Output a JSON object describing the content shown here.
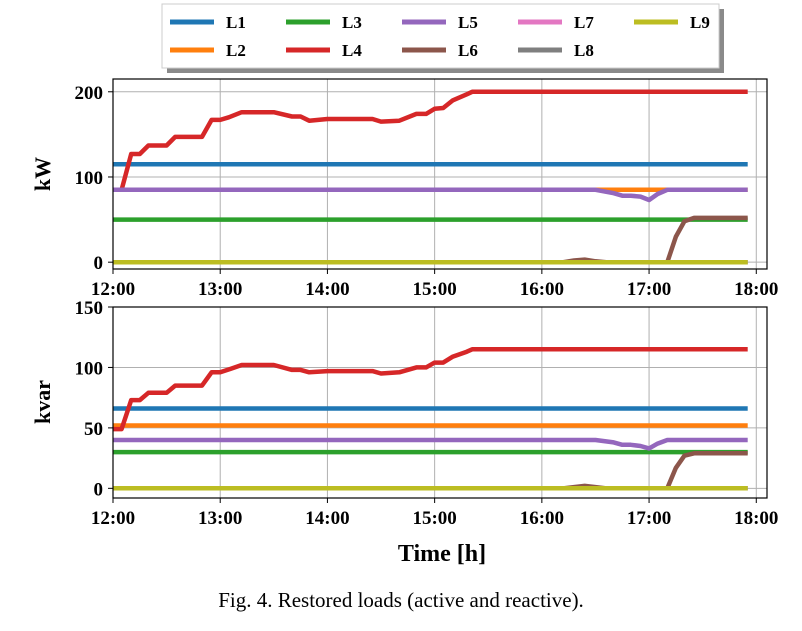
{
  "caption": "Fig. 4. Restored loads (active and reactive).",
  "legend": {
    "entries": [
      {
        "name": "L1",
        "color": "#1f77b4"
      },
      {
        "name": "L2",
        "color": "#ff7f0e"
      },
      {
        "name": "L3",
        "color": "#2ca02c"
      },
      {
        "name": "L4",
        "color": "#d62728"
      },
      {
        "name": "L5",
        "color": "#9467bd"
      },
      {
        "name": "L6",
        "color": "#8c564b"
      },
      {
        "name": "L7",
        "color": "#e377c2"
      },
      {
        "name": "L8",
        "color": "#7f7f7f"
      },
      {
        "name": "L9",
        "color": "#bcbd22"
      }
    ],
    "placement": "top-center"
  },
  "chart_data": [
    {
      "type": "line",
      "title": "",
      "ylabel": "kW",
      "xlabel": "",
      "xlim": [
        12.0,
        18.1
      ],
      "ylim": [
        -8,
        215
      ],
      "xticks": [
        12,
        13,
        14,
        15,
        16,
        17,
        18
      ],
      "xtick_labels": [
        "12:00",
        "13:00",
        "14:00",
        "15:00",
        "16:00",
        "17:00",
        "18:00"
      ],
      "yticks": [
        0,
        100,
        200
      ],
      "ytick_labels": [
        "0",
        "100",
        "200"
      ],
      "grid": true,
      "series": [
        {
          "name": "L1",
          "color": "#1f77b4",
          "points": [
            [
              12.0,
              115
            ],
            [
              17.92,
              115
            ]
          ]
        },
        {
          "name": "L2",
          "color": "#ff7f0e",
          "points": [
            [
              12.0,
              85
            ],
            [
              16.5,
              85
            ],
            [
              16.7,
              85
            ],
            [
              16.85,
              85
            ],
            [
              17.0,
              85
            ],
            [
              17.1,
              85
            ],
            [
              17.2,
              85
            ],
            [
              17.92,
              85
            ]
          ]
        },
        {
          "name": "L3",
          "color": "#2ca02c",
          "points": [
            [
              12.0,
              50
            ],
            [
              17.92,
              50
            ]
          ]
        },
        {
          "name": "L4",
          "color": "#d62728",
          "points": [
            [
              12.0,
              85
            ],
            [
              12.08,
              85
            ],
            [
              12.17,
              127
            ],
            [
              12.25,
              127
            ],
            [
              12.33,
              137
            ],
            [
              12.5,
              137
            ],
            [
              12.58,
              147
            ],
            [
              12.83,
              147
            ],
            [
              12.92,
              167
            ],
            [
              13.0,
              167
            ],
            [
              13.08,
              170
            ],
            [
              13.2,
              176
            ],
            [
              13.5,
              176
            ],
            [
              13.67,
              171
            ],
            [
              13.75,
              171
            ],
            [
              13.83,
              166
            ],
            [
              14.0,
              168
            ],
            [
              14.42,
              168
            ],
            [
              14.5,
              165
            ],
            [
              14.67,
              166
            ],
            [
              14.83,
              174
            ],
            [
              14.92,
              174
            ],
            [
              15.0,
              180
            ],
            [
              15.08,
              181
            ],
            [
              15.17,
              190
            ],
            [
              15.3,
              197
            ],
            [
              15.35,
              200
            ],
            [
              17.92,
              200
            ]
          ]
        },
        {
          "name": "L5",
          "color": "#9467bd",
          "points": [
            [
              12.0,
              85
            ],
            [
              16.5,
              85
            ],
            [
              16.67,
              81
            ],
            [
              16.75,
              78
            ],
            [
              16.83,
              78
            ],
            [
              16.92,
              77
            ],
            [
              17.0,
              73
            ],
            [
              17.08,
              80
            ],
            [
              17.17,
              85
            ],
            [
              17.92,
              85
            ]
          ]
        },
        {
          "name": "L6",
          "color": "#8c564b",
          "points": [
            [
              12.0,
              0
            ],
            [
              16.2,
              0
            ],
            [
              16.3,
              2
            ],
            [
              16.4,
              3
            ],
            [
              16.5,
              1
            ],
            [
              16.6,
              0
            ],
            [
              17.17,
              0
            ],
            [
              17.25,
              30
            ],
            [
              17.33,
              48
            ],
            [
              17.42,
              52
            ],
            [
              17.92,
              52
            ]
          ]
        },
        {
          "name": "L7",
          "color": "#e377c2",
          "points": [
            [
              12.0,
              0
            ],
            [
              17.92,
              0
            ]
          ]
        },
        {
          "name": "L8",
          "color": "#7f7f7f",
          "points": [
            [
              12.0,
              0
            ],
            [
              17.92,
              0
            ]
          ]
        },
        {
          "name": "L9",
          "color": "#bcbd22",
          "points": [
            [
              12.0,
              0
            ],
            [
              17.92,
              0
            ]
          ]
        }
      ]
    },
    {
      "type": "line",
      "title": "",
      "ylabel": "kvar",
      "xlabel": "Time [h]",
      "xlim": [
        12.0,
        18.1
      ],
      "ylim": [
        -8,
        150
      ],
      "xticks": [
        12,
        13,
        14,
        15,
        16,
        17,
        18
      ],
      "xtick_labels": [
        "12:00",
        "13:00",
        "14:00",
        "15:00",
        "16:00",
        "17:00",
        "18:00"
      ],
      "yticks": [
        0,
        50,
        100,
        150
      ],
      "ytick_labels": [
        "0",
        "50",
        "100",
        "150"
      ],
      "grid": true,
      "series": [
        {
          "name": "L1",
          "color": "#1f77b4",
          "points": [
            [
              12.0,
              66
            ],
            [
              17.92,
              66
            ]
          ]
        },
        {
          "name": "L2",
          "color": "#ff7f0e",
          "points": [
            [
              12.0,
              52
            ],
            [
              17.92,
              52
            ]
          ]
        },
        {
          "name": "L3",
          "color": "#2ca02c",
          "points": [
            [
              12.0,
              30
            ],
            [
              17.92,
              30
            ]
          ]
        },
        {
          "name": "L4",
          "color": "#d62728",
          "points": [
            [
              12.0,
              49
            ],
            [
              12.08,
              49
            ],
            [
              12.17,
              73
            ],
            [
              12.25,
              73
            ],
            [
              12.33,
              79
            ],
            [
              12.5,
              79
            ],
            [
              12.58,
              85
            ],
            [
              12.83,
              85
            ],
            [
              12.92,
              96
            ],
            [
              13.0,
              96
            ],
            [
              13.1,
              99
            ],
            [
              13.2,
              102
            ],
            [
              13.5,
              102
            ],
            [
              13.67,
              98
            ],
            [
              13.75,
              98
            ],
            [
              13.83,
              96
            ],
            [
              14.0,
              97
            ],
            [
              14.42,
              97
            ],
            [
              14.5,
              95
            ],
            [
              14.67,
              96
            ],
            [
              14.83,
              100
            ],
            [
              14.92,
              100
            ],
            [
              15.0,
              104
            ],
            [
              15.08,
              104
            ],
            [
              15.17,
              109
            ],
            [
              15.3,
              113
            ],
            [
              15.35,
              115
            ],
            [
              17.92,
              115
            ]
          ]
        },
        {
          "name": "L5",
          "color": "#9467bd",
          "points": [
            [
              12.0,
              40
            ],
            [
              16.5,
              40
            ],
            [
              16.67,
              38
            ],
            [
              16.75,
              36
            ],
            [
              16.83,
              36
            ],
            [
              16.92,
              35
            ],
            [
              17.0,
              33
            ],
            [
              17.08,
              37
            ],
            [
              17.17,
              40
            ],
            [
              17.92,
              40
            ]
          ]
        },
        {
          "name": "L6",
          "color": "#8c564b",
          "points": [
            [
              12.0,
              0
            ],
            [
              16.2,
              0
            ],
            [
              16.3,
              1
            ],
            [
              16.4,
              2
            ],
            [
              16.5,
              1
            ],
            [
              16.6,
              0
            ],
            [
              17.17,
              0
            ],
            [
              17.25,
              17
            ],
            [
              17.33,
              27
            ],
            [
              17.42,
              29
            ],
            [
              17.92,
              29
            ]
          ]
        },
        {
          "name": "L7",
          "color": "#e377c2",
          "points": [
            [
              12.0,
              0
            ],
            [
              17.92,
              0
            ]
          ]
        },
        {
          "name": "L8",
          "color": "#7f7f7f",
          "points": [
            [
              12.0,
              0
            ],
            [
              17.92,
              0
            ]
          ]
        },
        {
          "name": "L9",
          "color": "#bcbd22",
          "points": [
            [
              12.0,
              0
            ],
            [
              17.92,
              0
            ]
          ]
        }
      ]
    }
  ]
}
